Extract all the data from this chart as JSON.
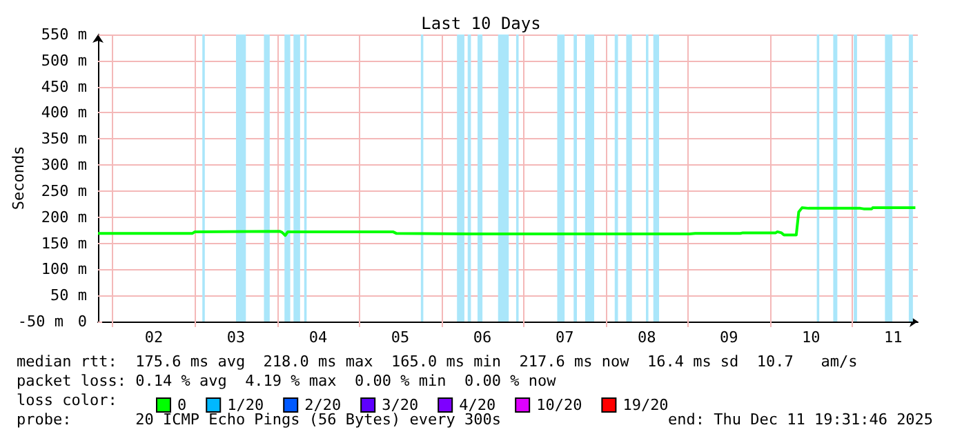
{
  "chart_data": {
    "type": "line",
    "title": "Last 10 Days",
    "ylabel": "Seconds",
    "x": [
      1.82,
      2.97,
      3.0,
      4.03,
      4.06,
      4.1,
      4.13,
      5.41,
      5.45,
      6.36,
      9.02,
      9.09,
      9.64,
      9.67,
      10.07,
      10.09,
      10.14,
      10.17,
      10.32,
      10.35,
      10.39,
      10.47,
      11.1,
      11.14,
      11.24,
      11.25,
      11.77
    ],
    "series": [
      {
        "name": "0",
        "color": "#00ff00",
        "values": [
          169,
          169,
          172,
          173,
          171,
          165,
          172,
          172,
          169,
          168,
          168,
          169,
          169,
          170,
          170,
          172,
          170,
          166,
          166,
          210,
          218,
          217,
          217,
          216,
          216,
          218,
          218
        ]
      },
      {
        "name": "1/20",
        "color": "#00b8ff",
        "values": [
          null,
          null,
          null,
          null,
          null,
          null,
          null,
          null,
          null,
          null,
          null,
          null,
          null,
          null,
          null,
          null,
          null,
          null,
          null,
          null,
          null,
          null,
          null,
          null,
          null,
          null,
          null
        ]
      },
      {
        "name": "2/20",
        "color": "#0059ff",
        "values": [
          null,
          null,
          null,
          null,
          null,
          null,
          null,
          null,
          null,
          null,
          null,
          null,
          null,
          null,
          null,
          null,
          null,
          null,
          null,
          null,
          null,
          null,
          null,
          null,
          null,
          null,
          null
        ]
      },
      {
        "name": "3/20",
        "color": "#5e00ff",
        "values": [
          null,
          null,
          null,
          null,
          null,
          null,
          null,
          null,
          null,
          null,
          null,
          null,
          null,
          null,
          null,
          null,
          null,
          null,
          null,
          null,
          null,
          null,
          null,
          null,
          null,
          null,
          null
        ]
      },
      {
        "name": "4/20",
        "color": "#7e00ff",
        "values": [
          null,
          null,
          null,
          null,
          null,
          null,
          null,
          null,
          null,
          null,
          null,
          null,
          null,
          null,
          null,
          null,
          null,
          null,
          null,
          null,
          null,
          null,
          null,
          null,
          null,
          null,
          null
        ]
      },
      {
        "name": "10/20",
        "color": "#dd00ff",
        "values": [
          null,
          null,
          null,
          null,
          null,
          null,
          null,
          null,
          null,
          null,
          null,
          null,
          null,
          null,
          null,
          null,
          null,
          null,
          null,
          null,
          null,
          null,
          null,
          null,
          null,
          null,
          null
        ]
      },
      {
        "name": "19/20",
        "color": "#ff0000",
        "values": [
          null,
          null,
          null,
          null,
          null,
          null,
          null,
          null,
          null,
          null,
          null,
          null,
          null,
          null,
          null,
          null,
          null,
          null,
          null,
          null,
          null,
          null,
          null,
          null,
          null,
          null,
          null
        ]
      }
    ],
    "xlim": [
      1.82,
      11.8
    ],
    "xticks": [
      {
        "value": 2,
        "label": null
      },
      {
        "value": 2.5,
        "label": "02"
      },
      {
        "value": 3,
        "label": null
      },
      {
        "value": 3.5,
        "label": "03"
      },
      {
        "value": 4,
        "label": null
      },
      {
        "value": 4.5,
        "label": "04"
      },
      {
        "value": 5,
        "label": null
      },
      {
        "value": 5.5,
        "label": "05"
      },
      {
        "value": 6,
        "label": null
      },
      {
        "value": 6.5,
        "label": "06"
      },
      {
        "value": 7,
        "label": null
      },
      {
        "value": 7.5,
        "label": "07"
      },
      {
        "value": 8,
        "label": null
      },
      {
        "value": 8.5,
        "label": "08"
      },
      {
        "value": 9,
        "label": null
      },
      {
        "value": 9.5,
        "label": "09"
      },
      {
        "value": 10,
        "label": null
      },
      {
        "value": 10.5,
        "label": "10"
      },
      {
        "value": 11,
        "label": null
      },
      {
        "value": 11.5,
        "label": "11"
      }
    ],
    "ylim": [
      0,
      550
    ],
    "yticks": [
      0,
      {
        "value": 50,
        "label": "50 m"
      },
      {
        "value": 100,
        "label": "100 m"
      },
      {
        "value": 150,
        "label": "150 m"
      },
      {
        "value": 200,
        "label": "200 m"
      },
      {
        "value": 250,
        "label": "250 m"
      },
      {
        "value": 300,
        "label": "300 m"
      },
      {
        "value": 350,
        "label": "350 m"
      },
      {
        "value": 400,
        "label": "400 m"
      },
      {
        "value": 450,
        "label": "450 m"
      },
      {
        "value": 500,
        "label": "500 m"
      },
      {
        "value": 550,
        "label": "550 m"
      }
    ],
    "grid": true,
    "legend": "bottom left",
    "marker": "none",
    "line_style": "solid",
    "bands": [
      {
        "axis": "x",
        "from": 3.09,
        "to": 3.12,
        "color": "#aae6fa"
      },
      {
        "axis": "x",
        "from": 3.5,
        "to": 3.62,
        "color": "#aae6fa"
      },
      {
        "axis": "x",
        "from": 3.84,
        "to": 3.91,
        "color": "#aae6fa"
      },
      {
        "axis": "x",
        "from": 4.09,
        "to": 4.16,
        "color": "#aae6fa"
      },
      {
        "axis": "x",
        "from": 4.2,
        "to": 4.28,
        "color": "#aae6fa"
      },
      {
        "axis": "x",
        "from": 4.33,
        "to": 4.36,
        "color": "#aae6fa"
      },
      {
        "axis": "x",
        "from": 5.75,
        "to": 5.78,
        "color": "#aae6fa"
      },
      {
        "axis": "x",
        "from": 6.19,
        "to": 6.28,
        "color": "#aae6fa"
      },
      {
        "axis": "x",
        "from": 6.32,
        "to": 6.36,
        "color": "#aae6fa"
      },
      {
        "axis": "x",
        "from": 6.44,
        "to": 6.5,
        "color": "#aae6fa"
      },
      {
        "axis": "x",
        "from": 6.69,
        "to": 6.82,
        "color": "#aae6fa"
      },
      {
        "axis": "x",
        "from": 6.91,
        "to": 6.94,
        "color": "#aae6fa"
      },
      {
        "axis": "x",
        "from": 7.41,
        "to": 7.5,
        "color": "#aae6fa"
      },
      {
        "axis": "x",
        "from": 7.61,
        "to": 7.65,
        "color": "#aae6fa"
      },
      {
        "axis": "x",
        "from": 7.75,
        "to": 7.86,
        "color": "#aae6fa"
      },
      {
        "axis": "x",
        "from": 8.11,
        "to": 8.15,
        "color": "#aae6fa"
      },
      {
        "axis": "x",
        "from": 8.25,
        "to": 8.32,
        "color": "#aae6fa"
      },
      {
        "axis": "x",
        "from": 8.49,
        "to": 8.52,
        "color": "#aae6fa"
      },
      {
        "axis": "x",
        "from": 8.58,
        "to": 8.65,
        "color": "#aae6fa"
      },
      {
        "axis": "x",
        "from": 10.57,
        "to": 10.6,
        "color": "#aae6fa"
      },
      {
        "axis": "x",
        "from": 10.77,
        "to": 10.82,
        "color": "#aae6fa"
      },
      {
        "axis": "x",
        "from": 11.02,
        "to": 11.06,
        "color": "#aae6fa"
      },
      {
        "axis": "x",
        "from": 11.4,
        "to": 11.49,
        "color": "#aae6fa"
      },
      {
        "axis": "x",
        "from": 11.69,
        "to": 11.74,
        "color": "#aae6fa"
      }
    ],
    "annotations": [
      "median rtt:  175.6 ms avg  218.0 ms max  165.0 ms min  217.6 ms now  16.4 ms sd  10.7   am/s",
      "packet loss: 0.14 % avg  4.19 % max  0.00 % min  0.00 % now",
      "loss color:",
      "probe:       20 ICMP Echo Pings (56 Bytes) every 300s",
      "end: Thu Dec 11 19:31:46 2025",
      "-50 m"
    ]
  }
}
